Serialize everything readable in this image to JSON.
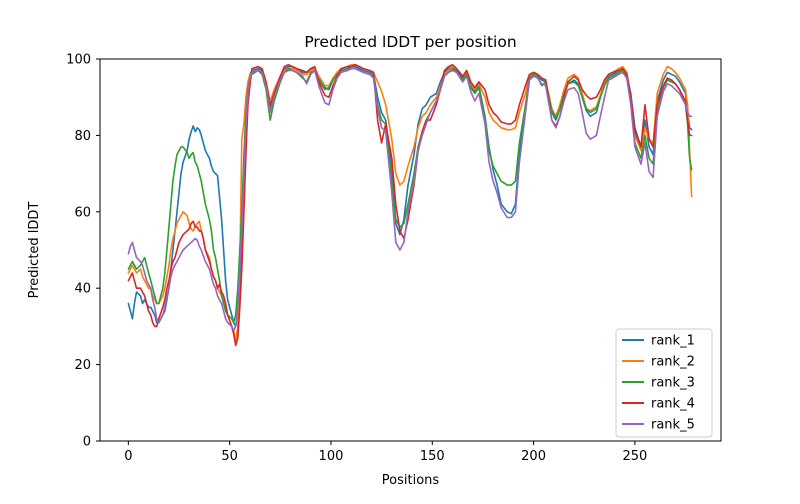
{
  "title": "Predicted lDDT per position",
  "chart_data": {
    "type": "line",
    "title": "Predicted lDDT per position",
    "xlabel": "Positions",
    "ylabel": "Predicted lDDT",
    "xlim": [
      -14,
      292.5
    ],
    "ylim": [
      0,
      100
    ],
    "x_ticks": [
      0,
      50,
      100,
      150,
      200,
      250
    ],
    "y_ticks": [
      0,
      20,
      40,
      60,
      80,
      100
    ],
    "grid": false,
    "legend_position": "lower right",
    "x": [
      0,
      1,
      2,
      3,
      4,
      6,
      7,
      8,
      9,
      10,
      11,
      12,
      13,
      14,
      15,
      17,
      18,
      19,
      20,
      21,
      22,
      23,
      24,
      25,
      26,
      27,
      29,
      30,
      31,
      32,
      33,
      34,
      35,
      36,
      37,
      38,
      40,
      41,
      42,
      43,
      44,
      45,
      46,
      47,
      48,
      49,
      51,
      52,
      53,
      54,
      55,
      56,
      57,
      58,
      59,
      60,
      61,
      64,
      66,
      68,
      70,
      72,
      75,
      77,
      79,
      81,
      83,
      86,
      88,
      90,
      92,
      94,
      97,
      99,
      101,
      103,
      105,
      108,
      110,
      112,
      114,
      116,
      119,
      121,
      123,
      125,
      127,
      130,
      132,
      134,
      136,
      138,
      141,
      143,
      145,
      147,
      149,
      152,
      154,
      156,
      158,
      160,
      162,
      165,
      167,
      169,
      171,
      173,
      176,
      178,
      180,
      182,
      184,
      187,
      189,
      191,
      193,
      196,
      198,
      200,
      202,
      204,
      206,
      209,
      211,
      213,
      215,
      217,
      220,
      222,
      224,
      226,
      228,
      231,
      233,
      235,
      237,
      239,
      242,
      244,
      246,
      248,
      250,
      253,
      255,
      257,
      259,
      261,
      264,
      266,
      268,
      270,
      272,
      275,
      276,
      277,
      278
    ],
    "series": [
      {
        "name": "rank_1",
        "color": "#1f77b4",
        "values": [
          36,
          34,
          32,
          36,
          39,
          38,
          36,
          37,
          36,
          35,
          35,
          34,
          33,
          31,
          31,
          33,
          34,
          37,
          40,
          45,
          50,
          55,
          60,
          65,
          70,
          73,
          76,
          79,
          81,
          82.5,
          81,
          82,
          81.5,
          80,
          78,
          76,
          74,
          72,
          70.5,
          70,
          69.5,
          64,
          58,
          50,
          42,
          37,
          33,
          31,
          30,
          33,
          40,
          52,
          70,
          88,
          93,
          96,
          97,
          97.5,
          97,
          93,
          88,
          91,
          95,
          97.5,
          98,
          98,
          97.5,
          96.5,
          96.5,
          97.5,
          97.5,
          95,
          92.5,
          92,
          94.5,
          96.5,
          97,
          97.5,
          98,
          98,
          97.5,
          97,
          96.5,
          96,
          90,
          86,
          84,
          72,
          57,
          54,
          58,
          67,
          75,
          83,
          87,
          88,
          90,
          91,
          94,
          96.5,
          97.5,
          98,
          97,
          95,
          96.5,
          93,
          91.5,
          93,
          85,
          77,
          71,
          67,
          62,
          60,
          59.5,
          62,
          75,
          87,
          95,
          96,
          95.5,
          94.5,
          94,
          86,
          84,
          87,
          91,
          93.5,
          94.5,
          93.5,
          90,
          86.5,
          85,
          86,
          90,
          93.5,
          95.5,
          96,
          97,
          97.5,
          96,
          91,
          82,
          77,
          84,
          77,
          75,
          89,
          94.5,
          96.5,
          96,
          95.5,
          94,
          91,
          86,
          82,
          81.5
        ]
      },
      {
        "name": "rank_2",
        "color": "#ff7f0e",
        "values": [
          44,
          45,
          46,
          45,
          44,
          45,
          43,
          42,
          41,
          40,
          40,
          38,
          37,
          36,
          36,
          38,
          40,
          43,
          46,
          50,
          53,
          55,
          57,
          58,
          59,
          60,
          59,
          57,
          55.5,
          55,
          56,
          57,
          57.5,
          55,
          53,
          50,
          48,
          45,
          43,
          42,
          40,
          39,
          38,
          37,
          35,
          33,
          30,
          29,
          26,
          30,
          45,
          79,
          83,
          90,
          94,
          96,
          96.5,
          97,
          96.5,
          94,
          89,
          92,
          95.5,
          97,
          97.5,
          97.5,
          97,
          96,
          96,
          97,
          97.5,
          95.5,
          93,
          93,
          95,
          96.5,
          97.5,
          98,
          98.5,
          98.5,
          98,
          97.5,
          97,
          96.5,
          94,
          91.5,
          88,
          79,
          70,
          67,
          68,
          72,
          77,
          82,
          85,
          86,
          88,
          90,
          93,
          96,
          97,
          98,
          97.5,
          95.5,
          96.5,
          93.5,
          92,
          93.5,
          90,
          86,
          84,
          83,
          82,
          81.5,
          81.5,
          82,
          86,
          91,
          95.5,
          96.5,
          96,
          95,
          94.5,
          87,
          85,
          88,
          92,
          95,
          96,
          95,
          91,
          87,
          86.5,
          87.5,
          90.5,
          94,
          96,
          96.5,
          97.5,
          98,
          96.5,
          90,
          80,
          76,
          82,
          79,
          78,
          91,
          96,
          98,
          97.5,
          96.5,
          95,
          92,
          88,
          76,
          64
        ]
      },
      {
        "name": "rank_3",
        "color": "#2ca02c",
        "values": [
          45,
          46,
          47,
          46,
          45,
          46,
          47,
          48,
          46,
          44,
          42,
          40,
          38,
          36,
          36,
          40,
          44,
          50,
          56,
          62,
          68,
          72,
          75,
          76,
          77,
          77,
          75.5,
          74,
          75,
          75.5,
          73,
          72,
          70,
          68,
          65,
          62,
          58,
          55,
          50,
          48,
          45,
          42,
          38,
          36,
          34,
          33,
          32,
          31,
          33,
          40,
          50,
          60,
          75,
          85,
          92,
          95,
          96,
          97,
          96,
          92,
          84,
          89,
          94,
          96.5,
          97.5,
          97,
          96.5,
          95,
          94,
          96.5,
          97,
          94.5,
          92,
          92.5,
          94.5,
          96,
          96.5,
          97,
          97.5,
          97.5,
          97,
          96.5,
          96,
          95.5,
          88,
          84,
          83,
          68,
          58,
          56,
          57,
          62,
          70,
          77,
          81,
          84,
          86,
          89,
          92,
          95.5,
          96.5,
          97.5,
          96.5,
          94.5,
          96,
          92.5,
          91,
          92.5,
          84,
          76,
          72,
          70,
          68,
          67,
          67,
          68,
          78,
          88,
          95,
          96,
          95.5,
          93,
          94,
          86.5,
          84.5,
          87,
          91,
          93.5,
          94,
          93,
          90,
          87,
          86,
          87,
          90,
          93,
          95,
          95.5,
          96.5,
          97,
          95.5,
          89,
          78,
          74,
          80,
          74,
          72.5,
          86,
          92.5,
          94.5,
          94,
          93.5,
          92,
          88,
          83,
          74,
          71
        ]
      },
      {
        "name": "rank_4",
        "color": "#d62728",
        "values": [
          42,
          43,
          44,
          42,
          40,
          40,
          39,
          38,
          36,
          34,
          33,
          31,
          30,
          30,
          32,
          35,
          37,
          40,
          42,
          45,
          47,
          48,
          50,
          52,
          53,
          54,
          55,
          55.5,
          57,
          57.5,
          56,
          56,
          55,
          55,
          53,
          50,
          47,
          45,
          43,
          42,
          40,
          41,
          39,
          38,
          36,
          33,
          30,
          28,
          25,
          27,
          35,
          45,
          60,
          75,
          88,
          93,
          97.5,
          98,
          97.5,
          94,
          87.5,
          91,
          95.5,
          98,
          98.5,
          98,
          97.5,
          97,
          96.5,
          97.5,
          98,
          94,
          90.5,
          90,
          93,
          95.5,
          97.5,
          98,
          98,
          98.5,
          98,
          97.5,
          97,
          96.5,
          84,
          78,
          83,
          74,
          62,
          55,
          53,
          58,
          67,
          76,
          81,
          84,
          84,
          88,
          92,
          97,
          98,
          98.5,
          97.5,
          95.5,
          97,
          94,
          92.5,
          94,
          92,
          88,
          86,
          85,
          83.5,
          83,
          83,
          84,
          88,
          93,
          96,
          96.5,
          96,
          95,
          94.5,
          84,
          82.5,
          85,
          90,
          94,
          95.5,
          94.5,
          92,
          90.5,
          89.5,
          90,
          92,
          94.5,
          96,
          96.5,
          97,
          97.5,
          96,
          90,
          81,
          77,
          88,
          79,
          77,
          88,
          93,
          95,
          94.5,
          93.5,
          92,
          89,
          84,
          80,
          80
        ]
      },
      {
        "name": "rank_5",
        "color": "#9467bd",
        "values": [
          49,
          51,
          52,
          50,
          48,
          47,
          46,
          44,
          42,
          41,
          40,
          37,
          35,
          32,
          31,
          33,
          35,
          38,
          40,
          43,
          45,
          46,
          47,
          48,
          49,
          50,
          51,
          51.5,
          52,
          52.5,
          53,
          52.5,
          51,
          50,
          48.5,
          47,
          45,
          43,
          41,
          40,
          38,
          37,
          36,
          34,
          32,
          31,
          30,
          29,
          30,
          35,
          45,
          55,
          70,
          83,
          91,
          95,
          96.5,
          97,
          96.5,
          93,
          86,
          90,
          94.5,
          96.5,
          97,
          97,
          96.5,
          95.5,
          93.5,
          96,
          97,
          93,
          88.5,
          88,
          92,
          95,
          96.5,
          97,
          97.5,
          97.5,
          97,
          96.5,
          96,
          95,
          87,
          82,
          81,
          65,
          52,
          50,
          52,
          60,
          68,
          76,
          80,
          83,
          86,
          89,
          92,
          95.5,
          96.5,
          97,
          96.5,
          94,
          95.5,
          91.5,
          89,
          91,
          83,
          73,
          68,
          65,
          61,
          58.5,
          58.5,
          60,
          73,
          86,
          94.5,
          95.5,
          95,
          93.5,
          93,
          84,
          82,
          85,
          89,
          92,
          92.5,
          91,
          86,
          80.5,
          79,
          80,
          85,
          90,
          94.5,
          95,
          96,
          96.5,
          95,
          88,
          77,
          72.5,
          78,
          70.5,
          69,
          85,
          91.5,
          93.5,
          93,
          92,
          91,
          88,
          86,
          85,
          85
        ]
      }
    ]
  }
}
